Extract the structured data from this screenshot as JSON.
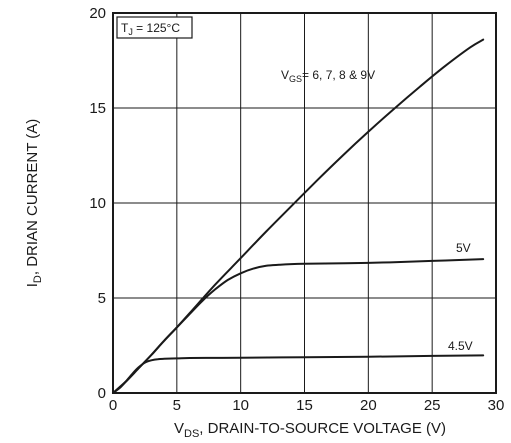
{
  "chart_data": {
    "type": "line",
    "xlim": [
      0,
      30
    ],
    "ylim": [
      0,
      20
    ],
    "xticks": [
      0,
      5,
      10,
      15,
      20,
      25,
      30
    ],
    "yticks": [
      0,
      5,
      10,
      15,
      20
    ],
    "grid": true,
    "xlabel": {
      "main": "V",
      "sub": "DS",
      "rest": ", DRAIN-TO-SOURCE VOLTAGE (V)"
    },
    "ylabel": {
      "main": "I",
      "sub": "D",
      "rest": ", DRIAN CURRENT (A)"
    },
    "condition_box": {
      "main": "T",
      "sub": "J",
      "rest": " = 125°C"
    },
    "series": [
      {
        "label_main": "V",
        "label_sub": "GS",
        "label_rest": "= 6, 7, 8 & 9V",
        "x": [
          0,
          1,
          2,
          3,
          4,
          5,
          6,
          8,
          10,
          12,
          14,
          16,
          18,
          20,
          22,
          24,
          26,
          28,
          29
        ],
        "y": [
          0,
          0.6,
          1.3,
          2.0,
          2.75,
          3.45,
          4.2,
          5.7,
          7.1,
          8.5,
          9.85,
          11.2,
          12.5,
          13.75,
          14.95,
          16.1,
          17.2,
          18.2,
          18.6
        ]
      },
      {
        "label": "5V",
        "x": [
          0,
          1,
          2,
          3,
          4,
          5,
          6,
          7,
          8,
          9,
          10,
          11,
          12,
          13,
          15,
          20,
          25,
          29
        ],
        "y": [
          0,
          0.6,
          1.3,
          2.0,
          2.75,
          3.45,
          4.15,
          4.85,
          5.45,
          5.95,
          6.3,
          6.55,
          6.7,
          6.75,
          6.8,
          6.85,
          6.95,
          7.05
        ]
      },
      {
        "label": "4.5V",
        "x": [
          0,
          0.5,
          1,
          1.5,
          2,
          2.5,
          3,
          3.5,
          4,
          5,
          6,
          8,
          10,
          15,
          20,
          25,
          29
        ],
        "y": [
          0,
          0.25,
          0.6,
          1.0,
          1.35,
          1.6,
          1.72,
          1.78,
          1.8,
          1.82,
          1.84,
          1.85,
          1.86,
          1.88,
          1.91,
          1.95,
          1.98
        ]
      }
    ]
  }
}
